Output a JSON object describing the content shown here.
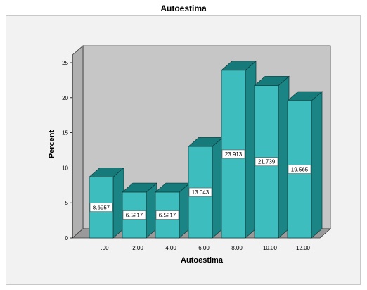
{
  "chart_data": {
    "type": "bar",
    "title": "Autoestima",
    "xlabel": "Autoestima",
    "ylabel": "Percent",
    "categories": [
      ".00",
      "2.00",
      "4.00",
      "6.00",
      "8.00",
      "10.00",
      "12.00"
    ],
    "values": [
      8.6957,
      6.5217,
      6.5217,
      13.043,
      23.913,
      21.739,
      19.565
    ],
    "data_labels": [
      "8.6957",
      "6.5217",
      "6.5217",
      "13.043",
      "23.913",
      "21.739",
      "19.565"
    ],
    "yticks": [
      "0",
      "5",
      "10",
      "15",
      "20",
      "25"
    ],
    "ylim": [
      0,
      26
    ],
    "grid": false,
    "style": "3d",
    "colors": {
      "bar_front": "#3dbdbd",
      "bar_side": "#1b8484",
      "bar_top": "#167a7a",
      "wall": "#c6c6c6",
      "floor": "#9a9a9a",
      "frame_bg": "#f2f2f2"
    }
  }
}
